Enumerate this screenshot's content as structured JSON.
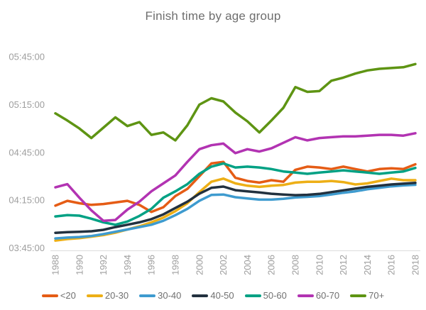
{
  "title": "Finish time by age group",
  "chart_data": {
    "type": "line",
    "title": "Finish time by age group",
    "x": [
      1988,
      1989,
      1990,
      1991,
      1992,
      1993,
      1994,
      1995,
      1996,
      1997,
      1998,
      1999,
      2000,
      2001,
      2002,
      2003,
      2004,
      2005,
      2006,
      2007,
      2008,
      2009,
      2010,
      2011,
      2012,
      2013,
      2014,
      2015,
      2016,
      2017,
      2018
    ],
    "x_tick_labels": [
      "1988",
      "1990",
      "1992",
      "1994",
      "1996",
      "1998",
      "2000",
      "2002",
      "2004",
      "2006",
      "2008",
      "2010",
      "2012",
      "2014",
      "2016",
      "2018"
    ],
    "y_tick_labels": [
      "03:45:00",
      "04:15:00",
      "04:45:00",
      "05:15:00",
      "05:45:00"
    ],
    "ylim": [
      "03:45:00",
      "05:45:00"
    ],
    "y_axis_interval": "00:30:00",
    "grid": false,
    "legend_position": "bottom",
    "axis_line_color": "#dddddd",
    "tick_text_color": "#9e9e9e",
    "series": [
      {
        "name": "<20",
        "color": "#E55C15",
        "values": [
          "4:11:30",
          "4:14:30",
          "4:13:00",
          "4:12:00",
          "4:12:30",
          "4:13:30",
          "4:14:30",
          "4:12:00",
          "4:07:30",
          "4:10:30",
          "4:17:30",
          "4:22:00",
          "4:30:00",
          "4:38:00",
          "4:39:00",
          "4:29:00",
          "4:27:00",
          "4:26:00",
          "4:27:30",
          "4:26:30",
          "4:34:00",
          "4:36:00",
          "4:35:30",
          "4:34:30",
          "4:36:00",
          "4:34:30",
          "4:33:00",
          "4:34:30",
          "4:35:00",
          "4:34:30",
          "4:37:30"
        ]
      },
      {
        "name": "20-30",
        "color": "#EDAF16",
        "values": [
          "3:49:30",
          "3:50:30",
          "3:51:00",
          "3:52:00",
          "3:53:00",
          "3:54:30",
          "3:56:30",
          "3:58:30",
          "4:01:00",
          "4:04:00",
          "4:08:00",
          "4:13:00",
          "4:20:00",
          "4:26:30",
          "4:28:30",
          "4:25:30",
          "4:24:00",
          "4:23:18",
          "4:24:00",
          "4:24:30",
          "4:26:00",
          "4:26:30",
          "4:26:30",
          "4:27:00",
          "4:26:18",
          "4:24:48",
          "4:25:30",
          "4:27:00",
          "4:28:30",
          "4:27:30",
          "4:27:30"
        ]
      },
      {
        "name": "30-40",
        "color": "#3E9BCF",
        "values": [
          "3:50:54",
          "3:51:24",
          "3:51:48",
          "3:52:24",
          "3:53:36",
          "3:55:06",
          "3:56:30",
          "3:58:00",
          "3:59:30",
          "4:02:00",
          "4:05:30",
          "4:09:30",
          "4:14:30",
          "4:18:12",
          "4:18:30",
          "4:16:48",
          "4:16:00",
          "4:15:18",
          "4:15:18",
          "4:15:48",
          "4:16:36",
          "4:17:00",
          "4:17:30",
          "4:18:30",
          "4:19:36",
          "4:20:30",
          "4:21:48",
          "4:22:42",
          "4:23:36",
          "4:24:12",
          "4:24:36"
        ]
      },
      {
        "name": "40-50",
        "color": "#22313F",
        "values": [
          "3:54:24",
          "3:54:48",
          "3:55:06",
          "3:55:24",
          "3:56:18",
          "3:58:00",
          "3:59:30",
          "4:01:00",
          "4:03:00",
          "4:06:00",
          "4:10:00",
          "4:14:00",
          "4:19:00",
          "4:22:42",
          "4:23:30",
          "4:21:12",
          "4:20:30",
          "4:19:48",
          "4:19:00",
          "4:18:30",
          "4:18:06",
          "4:18:18",
          "4:18:54",
          "4:20:00",
          "4:21:06",
          "4:22:12",
          "4:23:18",
          "4:24:00",
          "4:24:48",
          "4:25:18",
          "4:25:48"
        ]
      },
      {
        "name": "50-60",
        "color": "#00A184",
        "values": [
          "4:04:42",
          "4:05:30",
          "4:05:12",
          "4:03:18",
          "4:01:00",
          "3:59:30",
          "4:01:30",
          "4:05:00",
          "4:09:30",
          "4:16:30",
          "4:20:30",
          "4:25:00",
          "4:31:30",
          "4:36:00",
          "4:38:00",
          "4:35:30",
          "4:36:00",
          "4:35:30",
          "4:34:30",
          "4:33:00",
          "4:32:18",
          "4:31:30",
          "4:32:18",
          "4:33:00",
          "4:33:42",
          "4:33:00",
          "4:32:18",
          "4:31:30",
          "4:32:18",
          "4:33:00",
          "4:35:12"
        ]
      },
      {
        "name": "60-70",
        "color": "#B233B2",
        "values": [
          "4:23:00",
          "4:25:00",
          "4:16:30",
          "4:08:30",
          "4:02:00",
          "4:02:30",
          "4:09:00",
          "4:14:00",
          "4:20:30",
          "4:25:30",
          "4:30:30",
          "4:39:00",
          "4:47:00",
          "4:49:30",
          "4:50:30",
          "4:44:30",
          "4:47:00",
          "4:45:30",
          "4:47:30",
          "4:51:00",
          "4:54:30",
          "4:52:30",
          "4:54:00",
          "4:54:30",
          "4:55:00",
          "4:55:00",
          "4:55:30",
          "4:56:00",
          "4:56:00",
          "4:55:30",
          "4:57:00"
        ]
      },
      {
        "name": "70+",
        "color": "#5E9413",
        "values": [
          "5:09:30",
          "5:05:00",
          "5:00:00",
          "4:54:00",
          "5:00:30",
          "5:07:00",
          "5:01:30",
          "5:04:00",
          "4:56:00",
          "4:57:30",
          "4:52:30",
          "5:02:00",
          "5:15:00",
          "5:19:00",
          "5:17:00",
          "5:10:00",
          "5:04:30",
          "4:57:30",
          "5:05:00",
          "5:13:00",
          "5:26:00",
          "5:23:00",
          "5:23:30",
          "5:30:00",
          "5:32:00",
          "5:34:30",
          "5:36:30",
          "5:37:30",
          "5:38:00",
          "5:38:30",
          "5:40:30"
        ]
      }
    ]
  }
}
